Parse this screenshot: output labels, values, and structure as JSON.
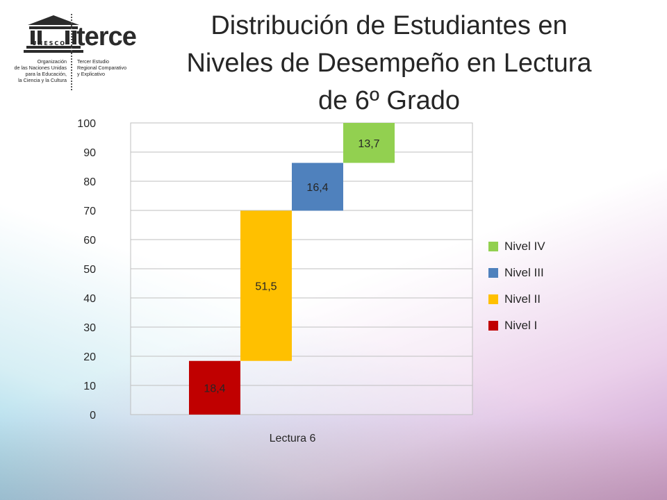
{
  "logo": {
    "unesco_name": "UNESCO",
    "org_lines": [
      "Organización",
      "de las Naciones Unidas",
      "para la Educación,",
      "la Ciencia y la Cultura"
    ],
    "program_name": "terce",
    "program_lines": [
      "Tercer Estudio",
      "Regional Comparativo",
      "y Explicativo"
    ]
  },
  "chart_data": {
    "type": "bar",
    "subtype": "waterfall-stacked",
    "title_lines": [
      "Distribución de Estudiantes en",
      "Niveles de Desempeño en Lectura",
      "de 6º Grado"
    ],
    "categories": [
      "Lectura 6"
    ],
    "xlabel": "Lectura 6",
    "ylabel": "",
    "ylim": [
      0,
      100
    ],
    "yticks": [
      "0",
      "10",
      "20",
      "30",
      "40",
      "50",
      "60",
      "70",
      "80",
      "90",
      "100"
    ],
    "grid": true,
    "legend_position": "right",
    "series": [
      {
        "name": "Nivel I",
        "values": [
          18.4
        ],
        "label": "18,4",
        "color": "#C00000"
      },
      {
        "name": "Nivel II",
        "values": [
          51.5
        ],
        "label": "51,5",
        "color": "#FFC000"
      },
      {
        "name": "Nivel III",
        "values": [
          16.4
        ],
        "label": "16,4",
        "color": "#4F81BD"
      },
      {
        "name": "Nivel IV",
        "values": [
          13.7
        ],
        "label": "13,7",
        "color": "#92D050"
      }
    ],
    "legend_order": [
      "Nivel IV",
      "Nivel III",
      "Nivel II",
      "Nivel I"
    ]
  }
}
